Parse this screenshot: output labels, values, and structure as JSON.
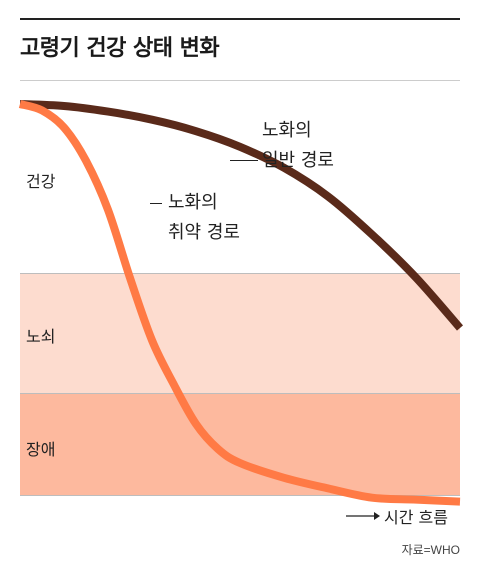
{
  "title": "고령기 건강 상태 변화",
  "source": "자료=WHO",
  "colors": {
    "healthy_zone": "#ffffff",
    "frail_zone": "#fddccf",
    "disability_zone": "#fdb99e",
    "normal_path": "#5a2a1a",
    "vulnerable_path": "#ff7a45"
  },
  "chart_data": {
    "type": "line",
    "xlabel": "시간 흐름",
    "ylabel": "",
    "zones": [
      {
        "name": "건강"
      },
      {
        "name": "노쇠"
      },
      {
        "name": "장애"
      }
    ],
    "series": [
      {
        "name": "노화의 일반 경로",
        "x": [
          0,
          10,
          20,
          30,
          40,
          50,
          60,
          70,
          80,
          90,
          100
        ],
        "y": [
          0,
          0.7,
          2.7,
          5.6,
          9.7,
          15.3,
          22.8,
          33.0,
          46.6,
          62.0,
          80.0
        ]
      },
      {
        "name": "노화의 취약 경로",
        "x": [
          0,
          5,
          10,
          15,
          20,
          25,
          30,
          35,
          40,
          45,
          50,
          60,
          70,
          80,
          90,
          100
        ],
        "y": [
          0,
          2.3,
          8.4,
          20.3,
          37.8,
          62.1,
          84.4,
          100.3,
          114.3,
          123.2,
          128.2,
          133.5,
          137.3,
          140.6,
          141.3,
          142.0
        ]
      }
    ]
  }
}
